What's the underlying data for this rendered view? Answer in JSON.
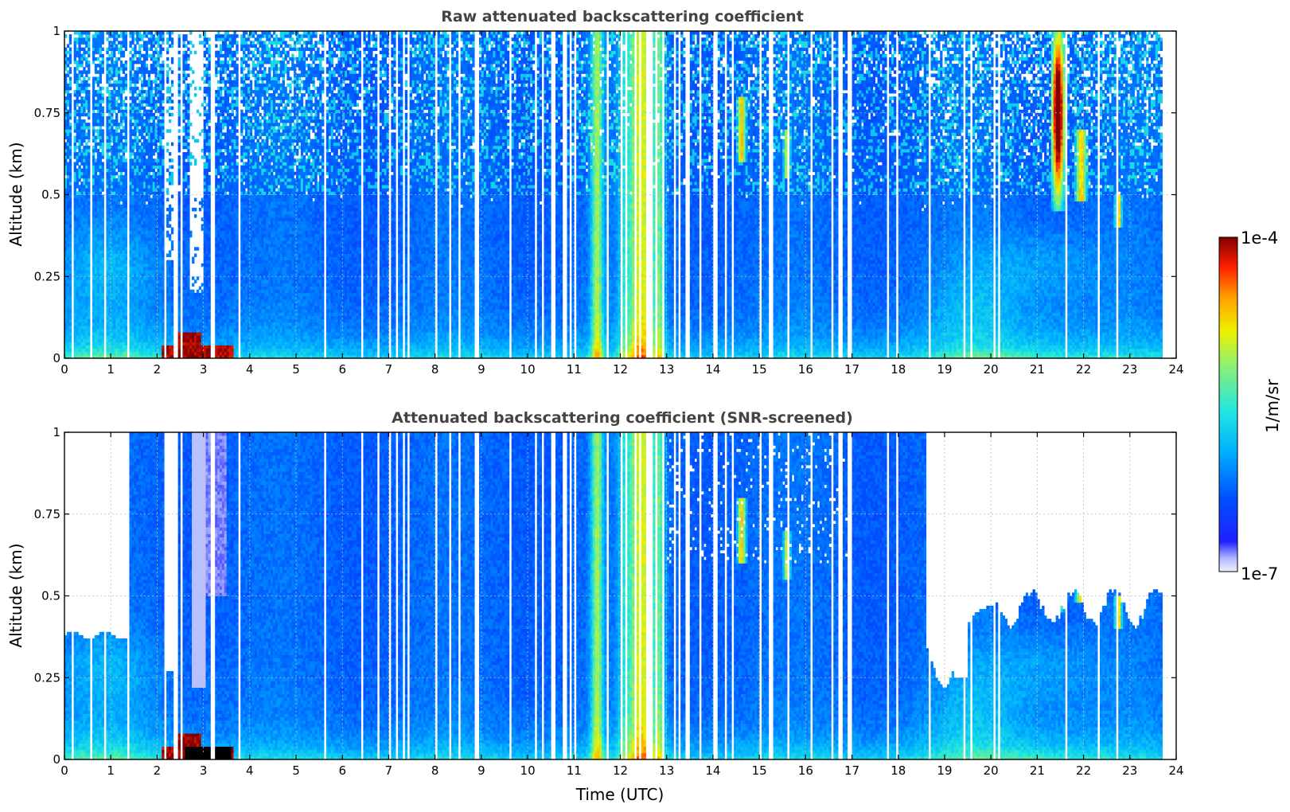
{
  "chart_data": [
    {
      "type": "heatmap",
      "title": "Raw attenuated backscattering coefficient",
      "xlabel": "",
      "ylabel": "Altitude (km)",
      "xlim": [
        0,
        24
      ],
      "ylim": [
        0,
        1
      ],
      "xticks": [
        "0",
        "1",
        "2",
        "3",
        "4",
        "5",
        "6",
        "7",
        "8",
        "9",
        "10",
        "11",
        "12",
        "13",
        "14",
        "15",
        "16",
        "17",
        "18",
        "19",
        "20",
        "21",
        "22",
        "23",
        "24"
      ],
      "yticks": [
        "0",
        "0.25",
        "0.5",
        "0.75",
        "1"
      ],
      "grid": true,
      "screened": false
    },
    {
      "type": "heatmap",
      "title": "Attenuated backscattering coefficient (SNR-screened)",
      "xlabel": "Time (UTC)",
      "ylabel": "Altitude (km)",
      "xlim": [
        0,
        24
      ],
      "ylim": [
        0,
        1
      ],
      "xticks": [
        "0",
        "1",
        "2",
        "3",
        "4",
        "5",
        "6",
        "7",
        "8",
        "9",
        "10",
        "11",
        "12",
        "13",
        "14",
        "15",
        "16",
        "17",
        "18",
        "19",
        "20",
        "21",
        "22",
        "23",
        "24"
      ],
      "yticks": [
        "0",
        "0.25",
        "0.5",
        "0.75",
        "1"
      ],
      "grid": true,
      "screened": true
    }
  ],
  "colorbar": {
    "max_label": "1e-4",
    "min_label": "1e-7",
    "unit_label": "1/m/sr",
    "scale": "log",
    "colormap": "jet"
  },
  "colors": {
    "title": "#444444",
    "missing": "#ffffff"
  }
}
